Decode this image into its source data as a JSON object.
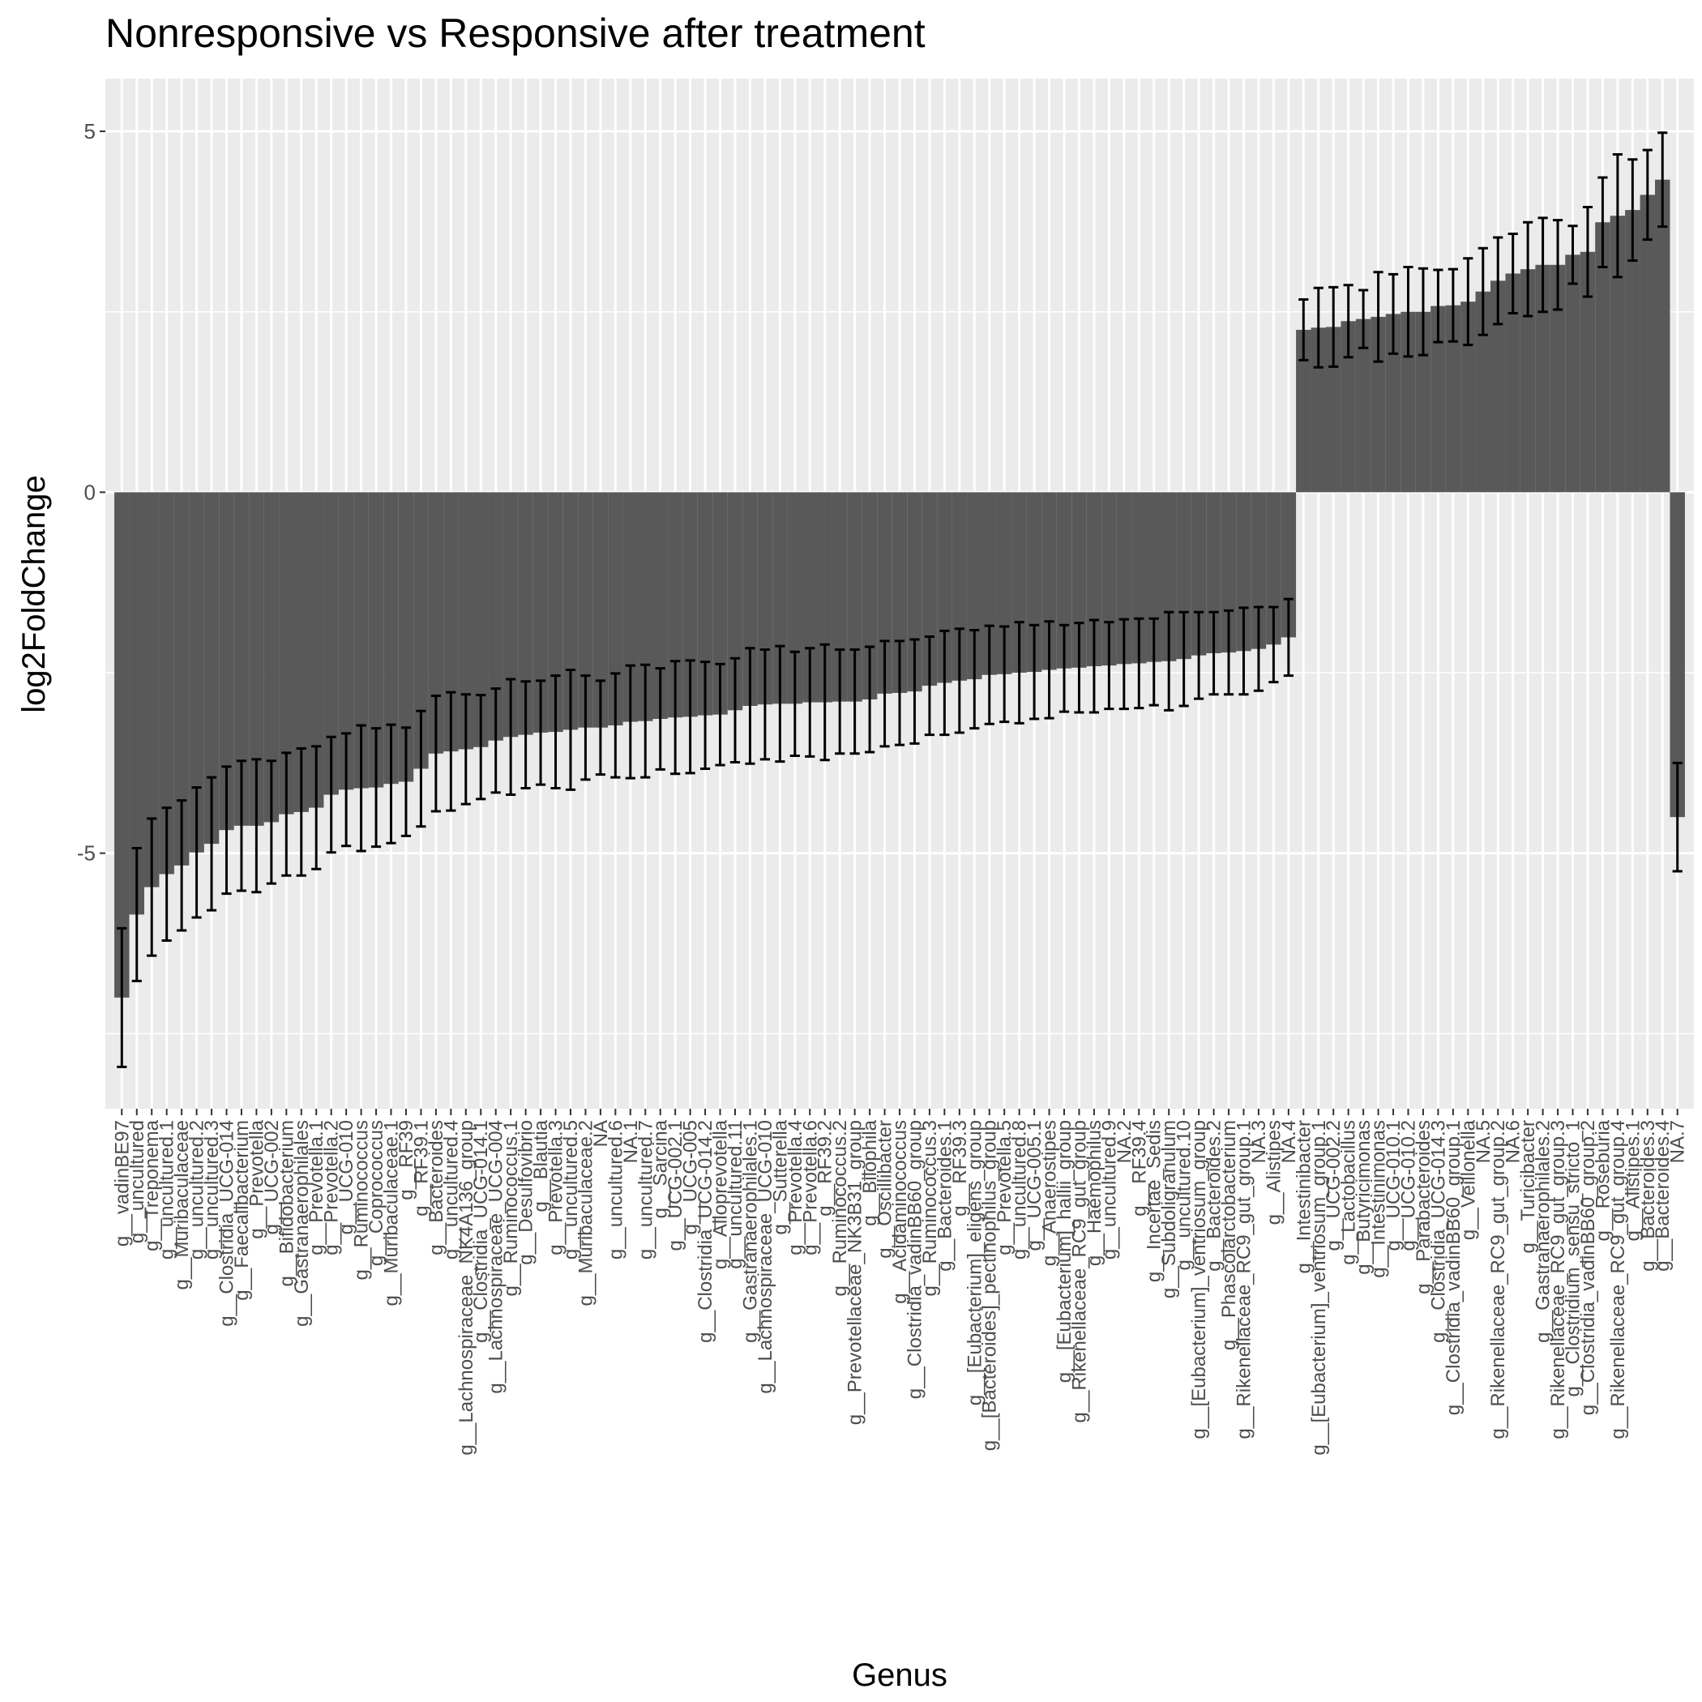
{
  "chart_data": {
    "type": "bar",
    "title": "Nonresponsive vs Responsive after treatment",
    "x_label": "Genus",
    "y_label": "log2FoldChange",
    "color": "#595959",
    "error_color": "#000000",
    "grid": true,
    "ylim": [
      -8.54,
      5.73
    ],
    "yticks": [
      -5,
      0,
      5
    ],
    "yticks_minor": [
      -7.5,
      -2.5,
      2.5
    ],
    "categories": [
      "g__vadinBE97",
      "g__uncultured",
      "g__Treponema",
      "g__uncultured.1",
      "g__Muribaculaceae",
      "g__uncultured.2",
      "g__uncultured.3",
      "g__Clostridia_UCG-014",
      "g__Faecalibacterium",
      "g__Prevotella",
      "g__UCG-002",
      "g__Bifidobacterium",
      "g__Gastranaerophilales",
      "g__Prevotella.1",
      "g__Prevotella.2",
      "g__UCG-010",
      "g__Ruminococcus",
      "g__Coprococcus",
      "g__Muribaculaceae.1",
      "g__RF39",
      "g__RF39.1",
      "g__Bacteroides",
      "g__uncultured.4",
      "g__Lachnospiraceae_NK4A136_group",
      "g__Clostridia_UCG-014.1",
      "g__Lachnospiraceae_UCG-004",
      "g__Ruminococcus.1",
      "g__Desulfovibrio",
      "g__Blautia",
      "g__Prevotella.3",
      "g__uncultured.5",
      "g__Muribaculaceae.2",
      "NA",
      "g__uncultured.6",
      "NA.1",
      "g__uncultured.7",
      "g__Sarcina",
      "g__UCG-002.1",
      "g__UCG-005",
      "g__Clostridia_UCG-014.2",
      "g__Alloprevotella",
      "g__uncultured.11",
      "g__Gastranaerophilales.1",
      "g__Lachnospiraceae_UCG-010",
      "g__Sutterella",
      "g__Prevotella.4",
      "g__Prevotella.6",
      "g__RF39.2",
      "g__Ruminococcus.2",
      "g__Prevotellaceae_NK3B31_group",
      "g__Bilophila",
      "g__Oscillibacter",
      "g__Acidaminococcus",
      "g__Clostridia_vadinBB60_group",
      "g__Ruminococcus.3",
      "g__Bacteroides.1",
      "g__RF39.3",
      "g__[Eubacterium]_eligens_group",
      "g__[Bacteroides]_pectinophilus_group",
      "g__Prevotella.5",
      "g__uncultured.8",
      "g__UCG-005.1",
      "g__Anaerostipes",
      "g__[Eubacterium]_hallii_group",
      "g__Rikenellaceae_RC9_gut_group",
      "g__Haemophilus",
      "g__uncultured.9",
      "NA.2",
      "g__RF39.4",
      "g__Incertae_Sedis",
      "g__Subdoligranulum",
      "g__uncultured.10",
      "g__[Eubacterium]_ventriosum_group",
      "g__Bacteroides.2",
      "g__Phascolarctobacterium",
      "g__Rikenellaceae_RC9_gut_group.1",
      "NA.3",
      "g__Alistipes",
      "NA.4",
      "g__Intestinibacter",
      "g__[Eubacterium]_ventriosum_group.1",
      "g__UCG-002.2",
      "g__Lactobacillus",
      "g__Butyricimonas",
      "g__Intestinimonas",
      "g__UCG-010.1",
      "g__UCG-010.2",
      "g__Parabacteroides",
      "g__Clostridia_UCG-014.3",
      "g__Clostridia_vadinBB60_group.1",
      "g__Veillonella",
      "NA.5",
      "g__Rikenellaceae_RC9_gut_group.2",
      "NA.6",
      "g__Turicibacter",
      "g__Gastranaerophilales.2",
      "g__Rikenellaceae_RC9_gut_group.3",
      "g__Clostridium_sensu_stricto_1",
      "g__Clostridia_vadinBB60_group.2",
      "g__Roseburia",
      "g__Rikenellaceae_RC9_gut_group.4",
      "g__Alistipes.1",
      "g__Bacteroides.3",
      "g__Bacteroides.4",
      "NA.7"
    ],
    "values": [
      -7.0,
      -5.85,
      -5.47,
      -5.29,
      -5.17,
      -4.99,
      -4.87,
      -4.68,
      -4.62,
      -4.62,
      -4.57,
      -4.46,
      -4.43,
      -4.37,
      -4.19,
      -4.12,
      -4.1,
      -4.09,
      -4.04,
      -4.01,
      -3.83,
      -3.62,
      -3.59,
      -3.56,
      -3.53,
      -3.44,
      -3.39,
      -3.36,
      -3.33,
      -3.32,
      -3.29,
      -3.26,
      -3.26,
      -3.23,
      -3.18,
      -3.17,
      -3.14,
      -3.12,
      -3.11,
      -3.09,
      -3.08,
      -3.02,
      -2.96,
      -2.94,
      -2.93,
      -2.93,
      -2.91,
      -2.91,
      -2.9,
      -2.9,
      -2.87,
      -2.79,
      -2.78,
      -2.76,
      -2.68,
      -2.64,
      -2.61,
      -2.59,
      -2.53,
      -2.52,
      -2.5,
      -2.49,
      -2.46,
      -2.44,
      -2.43,
      -2.41,
      -2.4,
      -2.38,
      -2.37,
      -2.35,
      -2.34,
      -2.31,
      -2.26,
      -2.23,
      -2.22,
      -2.2,
      -2.17,
      -2.11,
      -2.01,
      2.25,
      2.28,
      2.29,
      2.37,
      2.4,
      2.43,
      2.47,
      2.5,
      2.5,
      2.58,
      2.59,
      2.64,
      2.78,
      2.93,
      3.03,
      3.09,
      3.15,
      3.15,
      3.29,
      3.33,
      3.74,
      3.83,
      3.91,
      4.12,
      4.33,
      -4.5
    ],
    "errors": [
      0.96,
      0.92,
      0.95,
      0.92,
      0.9,
      0.9,
      0.92,
      0.88,
      0.9,
      0.92,
      0.85,
      0.85,
      0.88,
      0.85,
      0.8,
      0.78,
      0.87,
      0.82,
      0.82,
      0.75,
      0.8,
      0.8,
      0.82,
      0.76,
      0.72,
      0.72,
      0.8,
      0.74,
      0.72,
      0.78,
      0.83,
      0.72,
      0.65,
      0.72,
      0.78,
      0.78,
      0.7,
      0.78,
      0.78,
      0.74,
      0.7,
      0.72,
      0.8,
      0.76,
      0.8,
      0.72,
      0.75,
      0.8,
      0.72,
      0.72,
      0.73,
      0.73,
      0.72,
      0.72,
      0.68,
      0.72,
      0.72,
      0.68,
      0.68,
      0.66,
      0.7,
      0.65,
      0.67,
      0.6,
      0.62,
      0.64,
      0.6,
      0.62,
      0.62,
      0.6,
      0.68,
      0.65,
      0.6,
      0.57,
      0.58,
      0.6,
      0.58,
      0.52,
      0.53,
      0.42,
      0.55,
      0.55,
      0.5,
      0.4,
      0.62,
      0.55,
      0.62,
      0.6,
      0.5,
      0.5,
      0.6,
      0.6,
      0.6,
      0.55,
      0.65,
      0.65,
      0.62,
      0.4,
      0.62,
      0.62,
      0.85,
      0.7,
      0.62,
      0.65,
      0.75
    ]
  }
}
